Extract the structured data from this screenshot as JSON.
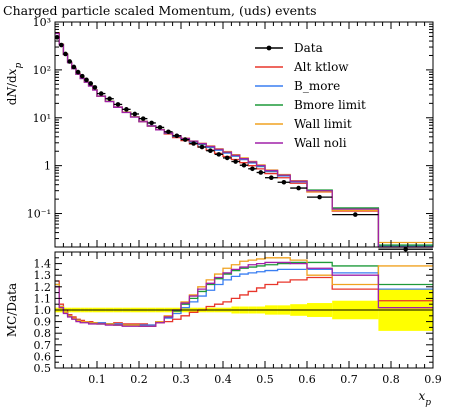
{
  "chart_data": {
    "type": "line",
    "title": "Charged particle scaled Momentum, (uds) events",
    "xlabel": "x_p",
    "ylabel": "dN/dx_p",
    "ratio_ylabel": "MC/Data",
    "xlim": [
      0,
      0.9
    ],
    "ylim": [
      0.02,
      1000
    ],
    "yscale": "log",
    "ratio_ylim": [
      0.5,
      1.5
    ],
    "x_ticks": [
      0.1,
      0.2,
      0.3,
      0.4,
      0.5,
      0.6,
      0.7,
      0.8,
      0.9
    ],
    "y_ticks": [
      {
        "value": 1000,
        "label": "10³"
      },
      {
        "value": 100,
        "label": "10²"
      },
      {
        "value": 10,
        "label": "10¹"
      },
      {
        "value": 1,
        "label": "1"
      },
      {
        "value": 0.1,
        "label": "10⁻¹"
      }
    ],
    "ratio_ticks": [
      0.5,
      0.6,
      0.7,
      0.8,
      0.9,
      1.0,
      1.1,
      1.2,
      1.3,
      1.4
    ],
    "legend_position": "top-right",
    "bin_edges": [
      0,
      0.01,
      0.02,
      0.03,
      0.04,
      0.05,
      0.06,
      0.07,
      0.08,
      0.09,
      0.1,
      0.12,
      0.14,
      0.16,
      0.18,
      0.2,
      0.22,
      0.24,
      0.26,
      0.28,
      0.3,
      0.32,
      0.34,
      0.36,
      0.38,
      0.4,
      0.42,
      0.44,
      0.46,
      0.48,
      0.5,
      0.53,
      0.56,
      0.6,
      0.66,
      0.77,
      0.9
    ],
    "data": {
      "name": "Data",
      "color": "#000000",
      "x": [
        0.005,
        0.015,
        0.025,
        0.035,
        0.045,
        0.055,
        0.065,
        0.075,
        0.085,
        0.095,
        0.11,
        0.13,
        0.15,
        0.17,
        0.19,
        0.21,
        0.23,
        0.25,
        0.27,
        0.29,
        0.31,
        0.33,
        0.35,
        0.37,
        0.39,
        0.41,
        0.43,
        0.45,
        0.47,
        0.49,
        0.515,
        0.545,
        0.58,
        0.63,
        0.715,
        0.835
      ],
      "y": [
        480,
        330,
        215,
        150,
        115,
        90,
        74,
        62,
        52,
        43,
        32,
        25,
        19,
        15,
        12,
        9.6,
        7.8,
        6.3,
        5.1,
        4.2,
        3.5,
        2.9,
        2.45,
        2.05,
        1.72,
        1.45,
        1.22,
        1.02,
        0.86,
        0.72,
        0.56,
        0.45,
        0.34,
        0.22,
        0.095,
        0.018
      ]
    },
    "series": [
      {
        "name": "Alt ktlow",
        "color": "#e8362b",
        "ratio": [
          1.25,
          1.05,
          1.0,
          0.96,
          0.94,
          0.92,
          0.91,
          0.9,
          0.9,
          0.89,
          0.89,
          0.88,
          0.89,
          0.88,
          0.88,
          0.88,
          0.87,
          0.89,
          0.9,
          0.92,
          0.95,
          0.98,
          1.0,
          1.03,
          1.05,
          1.07,
          1.1,
          1.13,
          1.16,
          1.19,
          1.22,
          1.24,
          1.26,
          1.28,
          1.18,
          1.08
        ]
      },
      {
        "name": "B_more",
        "color": "#3a7ff2",
        "ratio": [
          1.22,
          1.03,
          0.98,
          0.95,
          0.93,
          0.91,
          0.9,
          0.9,
          0.89,
          0.89,
          0.89,
          0.88,
          0.88,
          0.87,
          0.87,
          0.87,
          0.87,
          0.9,
          0.93,
          0.97,
          1.02,
          1.07,
          1.12,
          1.17,
          1.22,
          1.26,
          1.29,
          1.31,
          1.32,
          1.33,
          1.34,
          1.35,
          1.35,
          1.35,
          1.32,
          1.18
        ]
      },
      {
        "name": "Bmore limit",
        "color": "#1f9a3a",
        "ratio": [
          1.22,
          1.03,
          0.98,
          0.95,
          0.93,
          0.91,
          0.9,
          0.9,
          0.89,
          0.89,
          0.88,
          0.88,
          0.87,
          0.87,
          0.87,
          0.86,
          0.86,
          0.9,
          0.94,
          0.99,
          1.05,
          1.1,
          1.16,
          1.22,
          1.27,
          1.31,
          1.34,
          1.36,
          1.37,
          1.38,
          1.39,
          1.4,
          1.41,
          1.41,
          1.38,
          1.22
        ]
      },
      {
        "name": "Wall limit",
        "color": "#f0a220",
        "ratio": [
          1.22,
          1.03,
          0.98,
          0.95,
          0.93,
          0.91,
          0.9,
          0.9,
          0.89,
          0.89,
          0.88,
          0.88,
          0.87,
          0.87,
          0.87,
          0.86,
          0.86,
          0.9,
          0.95,
          1.0,
          1.07,
          1.13,
          1.2,
          1.26,
          1.31,
          1.36,
          1.39,
          1.42,
          1.43,
          1.44,
          1.45,
          1.45,
          1.43,
          1.3,
          1.22,
          1.38
        ]
      },
      {
        "name": "Wall noli",
        "color": "#a020a8",
        "ratio": [
          1.2,
          1.02,
          0.97,
          0.94,
          0.92,
          0.9,
          0.89,
          0.89,
          0.88,
          0.88,
          0.88,
          0.87,
          0.87,
          0.86,
          0.86,
          0.86,
          0.86,
          0.89,
          0.94,
          1.0,
          1.06,
          1.12,
          1.18,
          1.23,
          1.28,
          1.32,
          1.35,
          1.37,
          1.39,
          1.4,
          1.41,
          1.41,
          1.4,
          1.36,
          1.3,
          1.02
        ]
      }
    ],
    "data_uncertainty_ratio": [
      0.02,
      0.02,
      0.02,
      0.02,
      0.02,
      0.02,
      0.02,
      0.02,
      0.02,
      0.02,
      0.02,
      0.02,
      0.02,
      0.02,
      0.02,
      0.02,
      0.02,
      0.02,
      0.02,
      0.02,
      0.02,
      0.02,
      0.02,
      0.02,
      0.02,
      0.02,
      0.03,
      0.03,
      0.03,
      0.03,
      0.04,
      0.04,
      0.05,
      0.06,
      0.08,
      0.18
    ],
    "band_color": "#ffff00"
  }
}
